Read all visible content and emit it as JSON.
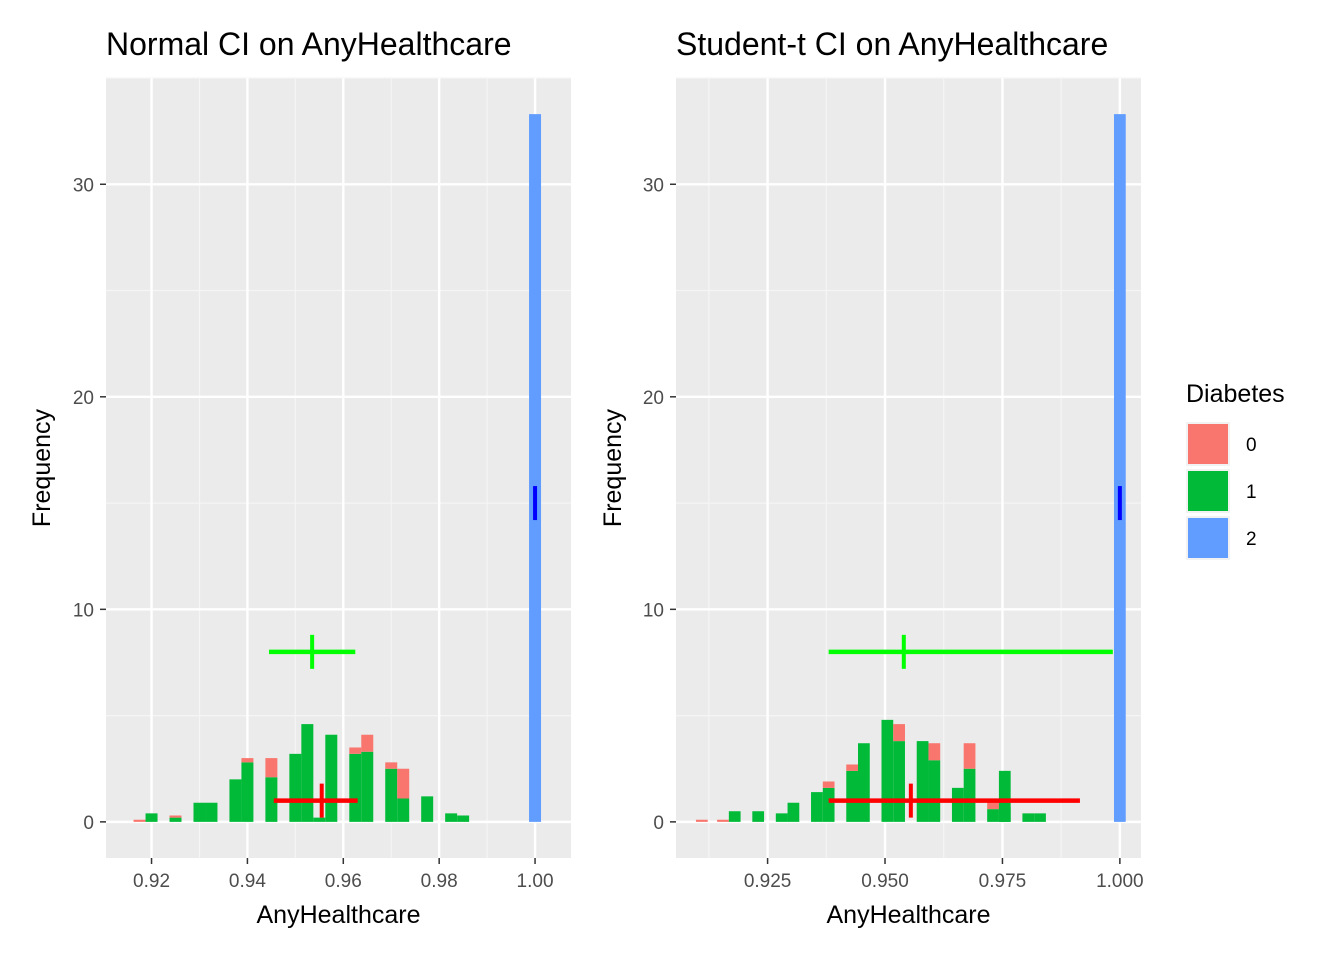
{
  "chart_data": [
    {
      "type": "bar",
      "title": "Normal CI on AnyHealthcare",
      "xlabel": "AnyHealthcare",
      "ylabel": "Frequency",
      "xlim": [
        0.9105,
        1.0075
      ],
      "ylim": [
        -1.7,
        35.0
      ],
      "x_ticks": [
        0.92,
        0.94,
        0.96,
        0.98,
        1.0
      ],
      "x_tick_labels": [
        "0.92",
        "0.94",
        "0.96",
        "0.98",
        "1.00"
      ],
      "y_ticks": [
        0,
        10,
        20,
        30
      ],
      "y_tick_labels": [
        "0",
        "10",
        "20",
        "30"
      ],
      "bin_width": 0.0025,
      "bars": [
        {
          "x": 0.9175,
          "group": "0",
          "bottom": 0,
          "top": 0.1
        },
        {
          "x": 0.92,
          "group": "1",
          "bottom": 0,
          "top": 0.4
        },
        {
          "x": 0.925,
          "group": "1",
          "bottom": 0,
          "top": 0.2
        },
        {
          "x": 0.925,
          "group": "0",
          "bottom": 0.2,
          "top": 0.3
        },
        {
          "x": 0.93,
          "group": "1",
          "bottom": 0,
          "top": 0.9
        },
        {
          "x": 0.9325,
          "group": "1",
          "bottom": 0,
          "top": 0.9
        },
        {
          "x": 0.9375,
          "group": "1",
          "bottom": 0,
          "top": 2.0
        },
        {
          "x": 0.94,
          "group": "1",
          "bottom": 0,
          "top": 2.8
        },
        {
          "x": 0.94,
          "group": "0",
          "bottom": 2.8,
          "top": 3.0
        },
        {
          "x": 0.945,
          "group": "1",
          "bottom": 0,
          "top": 2.1
        },
        {
          "x": 0.945,
          "group": "0",
          "bottom": 2.1,
          "top": 3.0
        },
        {
          "x": 0.95,
          "group": "1",
          "bottom": 0,
          "top": 3.2
        },
        {
          "x": 0.9525,
          "group": "1",
          "bottom": 0,
          "top": 4.6
        },
        {
          "x": 0.955,
          "group": "1",
          "bottom": 0,
          "top": 0.2
        },
        {
          "x": 0.9575,
          "group": "1",
          "bottom": 0,
          "top": 4.1
        },
        {
          "x": 0.9625,
          "group": "1",
          "bottom": 0,
          "top": 3.2
        },
        {
          "x": 0.9625,
          "group": "0",
          "bottom": 3.2,
          "top": 3.5
        },
        {
          "x": 0.965,
          "group": "1",
          "bottom": 0,
          "top": 3.3
        },
        {
          "x": 0.965,
          "group": "0",
          "bottom": 3.3,
          "top": 4.1
        },
        {
          "x": 0.97,
          "group": "1",
          "bottom": 0,
          "top": 2.5
        },
        {
          "x": 0.97,
          "group": "0",
          "bottom": 2.5,
          "top": 2.8
        },
        {
          "x": 0.9725,
          "group": "1",
          "bottom": 0,
          "top": 1.1
        },
        {
          "x": 0.9725,
          "group": "0",
          "bottom": 1.1,
          "top": 2.5
        },
        {
          "x": 0.9775,
          "group": "1",
          "bottom": 0,
          "top": 1.2
        },
        {
          "x": 0.9825,
          "group": "1",
          "bottom": 0,
          "top": 0.4
        },
        {
          "x": 0.985,
          "group": "1",
          "bottom": 0,
          "top": 0.3
        },
        {
          "x": 1.0,
          "group": "2",
          "bottom": 0,
          "top": 33.3
        }
      ],
      "ci": [
        {
          "group": "1",
          "estimate": 0.9535,
          "lower": 0.9445,
          "upper": 0.9625,
          "y": 8.0,
          "color": "#00ff00"
        },
        {
          "group": "0",
          "estimate": 0.9555,
          "lower": 0.9455,
          "upper": 0.963,
          "y": 1.0,
          "color": "#ff0000"
        },
        {
          "group": "2",
          "estimate": 1.0,
          "lower": 1.0,
          "upper": 1.0,
          "y": 15.0,
          "color": "#0000ff"
        }
      ]
    },
    {
      "type": "bar",
      "title": "Student-t CI on AnyHealthcare",
      "xlabel": "AnyHealthcare",
      "ylabel": "Frequency",
      "xlim": [
        0.9055,
        1.0045
      ],
      "ylim": [
        -1.7,
        35.0
      ],
      "x_ticks": [
        0.925,
        0.95,
        0.975,
        1.0
      ],
      "x_tick_labels": [
        "0.925",
        "0.950",
        "0.975",
        "1.000"
      ],
      "y_ticks": [
        0,
        10,
        20,
        30
      ],
      "y_tick_labels": [
        "0",
        "10",
        "20",
        "30"
      ],
      "bin_width": 0.0025,
      "bars": [
        {
          "x": 0.911,
          "group": "0",
          "bottom": 0,
          "top": 0.1
        },
        {
          "x": 0.9155,
          "group": "0",
          "bottom": 0,
          "top": 0.1
        },
        {
          "x": 0.918,
          "group": "1",
          "bottom": 0,
          "top": 0.5
        },
        {
          "x": 0.923,
          "group": "1",
          "bottom": 0,
          "top": 0.5
        },
        {
          "x": 0.928,
          "group": "1",
          "bottom": 0,
          "top": 0.4
        },
        {
          "x": 0.9305,
          "group": "1",
          "bottom": 0,
          "top": 0.9
        },
        {
          "x": 0.9355,
          "group": "1",
          "bottom": 0,
          "top": 1.4
        },
        {
          "x": 0.938,
          "group": "1",
          "bottom": 0,
          "top": 1.6
        },
        {
          "x": 0.938,
          "group": "0",
          "bottom": 1.6,
          "top": 1.9
        },
        {
          "x": 0.943,
          "group": "1",
          "bottom": 0,
          "top": 2.4
        },
        {
          "x": 0.943,
          "group": "0",
          "bottom": 2.4,
          "top": 2.7
        },
        {
          "x": 0.9455,
          "group": "1",
          "bottom": 0,
          "top": 3.7
        },
        {
          "x": 0.9505,
          "group": "1",
          "bottom": 0,
          "top": 4.8
        },
        {
          "x": 0.953,
          "group": "1",
          "bottom": 0,
          "top": 3.8
        },
        {
          "x": 0.953,
          "group": "0",
          "bottom": 3.8,
          "top": 4.6
        },
        {
          "x": 0.958,
          "group": "1",
          "bottom": 0,
          "top": 3.8
        },
        {
          "x": 0.9605,
          "group": "1",
          "bottom": 0,
          "top": 2.9
        },
        {
          "x": 0.9605,
          "group": "0",
          "bottom": 2.9,
          "top": 3.7
        },
        {
          "x": 0.9655,
          "group": "1",
          "bottom": 0,
          "top": 1.6
        },
        {
          "x": 0.968,
          "group": "1",
          "bottom": 0,
          "top": 2.5
        },
        {
          "x": 0.968,
          "group": "0",
          "bottom": 2.5,
          "top": 3.7
        },
        {
          "x": 0.973,
          "group": "1",
          "bottom": 0,
          "top": 0.6
        },
        {
          "x": 0.973,
          "group": "0",
          "bottom": 0.6,
          "top": 1.0
        },
        {
          "x": 0.9755,
          "group": "1",
          "bottom": 0,
          "top": 2.4
        },
        {
          "x": 0.9755,
          "group": "1",
          "bottom": 0,
          "top": 0.7
        },
        {
          "x": 0.9805,
          "group": "1",
          "bottom": 0,
          "top": 0.4
        },
        {
          "x": 0.983,
          "group": "1",
          "bottom": 0,
          "top": 0.4
        },
        {
          "x": 1.0,
          "group": "2",
          "bottom": 0,
          "top": 33.3
        }
      ],
      "ci": [
        {
          "group": "1",
          "estimate": 0.954,
          "lower": 0.938,
          "upper": 0.9985,
          "y": 8.0,
          "color": "#00ff00"
        },
        {
          "group": "0",
          "estimate": 0.9555,
          "lower": 0.938,
          "upper": 0.9915,
          "y": 1.0,
          "color": "#ff0000"
        },
        {
          "group": "2",
          "estimate": 1.0,
          "lower": 1.0,
          "upper": 1.0,
          "y": 15.0,
          "color": "#0000ff"
        }
      ]
    }
  ],
  "legend": {
    "title": "Diabetes",
    "placement": "right",
    "items": [
      {
        "label": "0",
        "color": "#F8766D"
      },
      {
        "label": "1",
        "color": "#00BA38"
      },
      {
        "label": "2",
        "color": "#619CFF"
      }
    ]
  },
  "colors": {
    "panel_background": "#EBEBEB",
    "grid_major": "#FFFFFF",
    "grid_minor": "#F5F5F5",
    "tick": "#333333"
  }
}
